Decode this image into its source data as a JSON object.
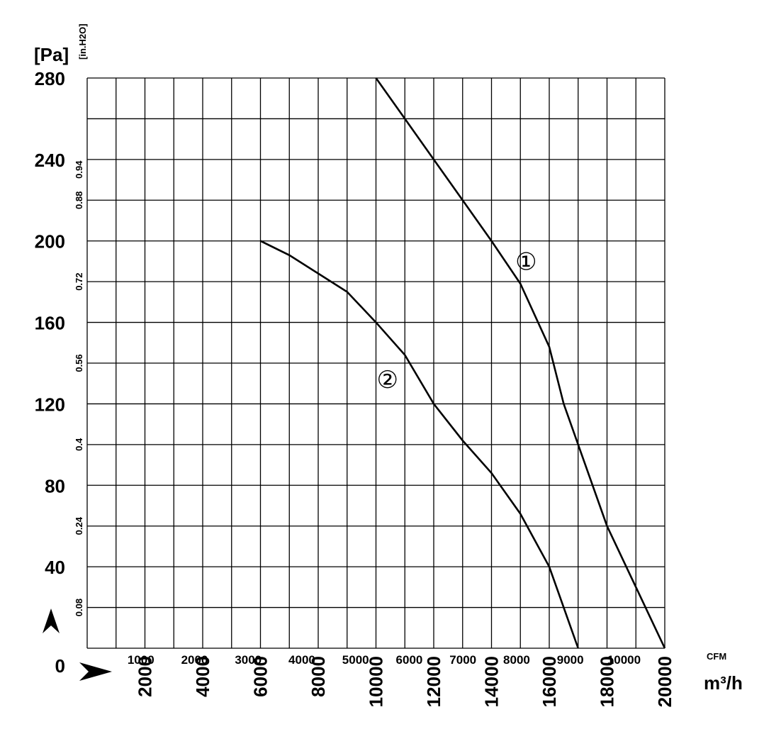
{
  "chart_data": {
    "type": "line",
    "ylabel": "[Pa]",
    "y2label": "[in.H2O]",
    "xlabel": "m³/h",
    "x2label": "CFM",
    "xlim": [
      0,
      20000
    ],
    "xticks": [
      2000,
      4000,
      6000,
      8000,
      10000,
      12000,
      14000,
      16000,
      18000,
      20000
    ],
    "xgrid": [
      0,
      1000,
      2000,
      3000,
      4000,
      5000,
      6000,
      7000,
      8000,
      9000,
      10000,
      11000,
      12000,
      13000,
      14000,
      15000,
      16000,
      17000,
      18000,
      19000,
      20000
    ],
    "x2lim": [
      0,
      10760
    ],
    "x2ticks": [
      1000,
      2000,
      3000,
      4000,
      5000,
      6000,
      7000,
      8000,
      9000,
      10000
    ],
    "ylim": [
      0,
      280
    ],
    "yticks": [
      0,
      40,
      80,
      120,
      160,
      200,
      240,
      280
    ],
    "ygrid": [
      0,
      20,
      40,
      60,
      80,
      100,
      120,
      140,
      160,
      180,
      200,
      220,
      240,
      260,
      280
    ],
    "y2lim": [
      0,
      1.12
    ],
    "y2ticks": [
      0.08,
      0.24,
      0.4,
      0.56,
      0.72,
      0.88,
      0.94
    ],
    "grid": true,
    "series": [
      {
        "name": "①",
        "color": "#000000",
        "label_at": [
          15200,
          190
        ],
        "x": [
          10000,
          11000,
          12000,
          13000,
          14000,
          15000,
          16000,
          16500,
          17000,
          18000,
          19000,
          20000
        ],
        "values": [
          280,
          260,
          240,
          220,
          200,
          179,
          148,
          120,
          100,
          60,
          30,
          0
        ]
      },
      {
        "name": "②",
        "color": "#000000",
        "label_at": [
          10400,
          132
        ],
        "x": [
          6000,
          7000,
          8000,
          9000,
          10000,
          11000,
          12000,
          13000,
          14000,
          15000,
          16000,
          16500,
          17000
        ],
        "values": [
          200,
          193,
          184,
          175,
          160,
          144,
          120,
          102,
          86,
          66,
          40,
          20,
          0
        ]
      }
    ]
  }
}
